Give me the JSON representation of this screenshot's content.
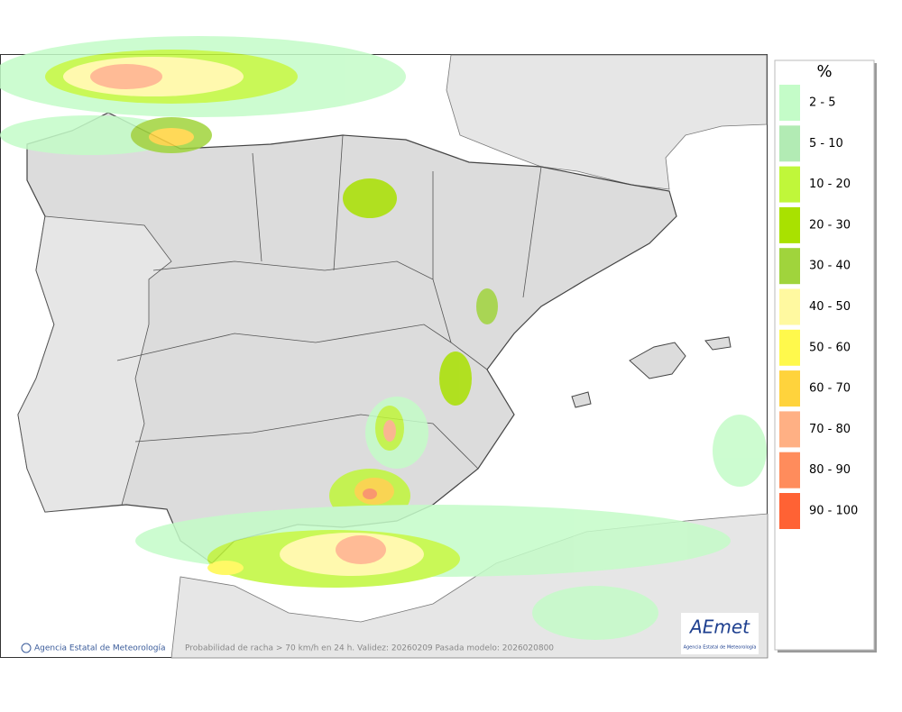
{
  "legend": {
    "title": "%",
    "items": [
      {
        "label": "2 - 5",
        "color": "#c4fcc8"
      },
      {
        "label": "5 - 10",
        "color": "#b2ebb4"
      },
      {
        "label": "10 - 20",
        "color": "#c0f73a"
      },
      {
        "label": "20 - 30",
        "color": "#a9e100"
      },
      {
        "label": "30 - 40",
        "color": "#a0d43c"
      },
      {
        "label": "40 - 50",
        "color": "#fff9a0"
      },
      {
        "label": "50 - 60",
        "color": "#fff94c"
      },
      {
        "label": "60 - 70",
        "color": "#ffd33c"
      },
      {
        "label": "70 - 80",
        "color": "#ffb084"
      },
      {
        "label": "80 - 90",
        "color": "#ff8c5c"
      },
      {
        "label": "90 - 100",
        "color": "#ff6234"
      }
    ]
  },
  "footer": {
    "credit": "Agencia Estatal de Meteorología",
    "caption": "Probabilidad de racha > 70 km/h en 24 h. Validez: 20260209 Pasada modelo: 2026020800"
  },
  "logo": {
    "name": "AEmet",
    "subtitle": "Agencia Estatal de Meteorología"
  }
}
